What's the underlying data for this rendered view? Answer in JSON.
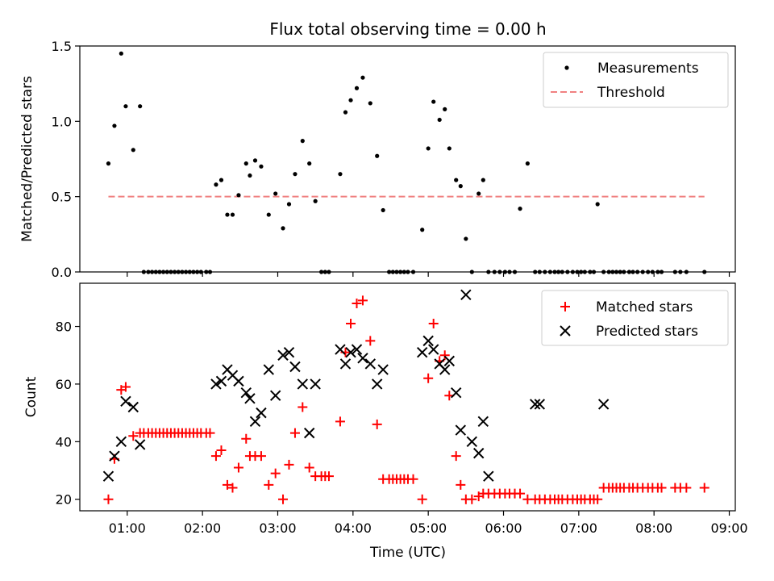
{
  "chart_data": [
    {
      "type": "scatter",
      "title": "Flux total observing time = 0.00 h",
      "xlabel": "",
      "ylabel": "Matched/Predicted stars",
      "xlim": [
        0.37,
        9.08
      ],
      "ylim": [
        0,
        1.5
      ],
      "yticks": [
        0,
        0.5,
        1.0,
        1.5
      ],
      "ytick_labels": [
        "0.0",
        "0.5",
        "1.0",
        "1.5"
      ],
      "xticks": [
        1,
        2,
        3,
        4,
        5,
        6,
        7,
        8,
        9
      ],
      "legend_position": "top-right",
      "threshold": {
        "name": "Threshold",
        "y": 0.5,
        "x_range": [
          0.75,
          8.67
        ],
        "color": "#f08080",
        "style": "dashed"
      },
      "series": [
        {
          "name": "Measurements",
          "color": "#000000",
          "marker": "dot",
          "x": [
            0.75,
            0.83,
            0.92,
            0.98,
            1.08,
            1.17,
            1.22,
            1.28,
            1.33,
            1.38,
            1.43,
            1.48,
            1.53,
            1.58,
            1.63,
            1.68,
            1.73,
            1.78,
            1.83,
            1.88,
            1.93,
            1.98,
            2.05,
            2.1,
            2.18,
            2.25,
            2.33,
            2.4,
            2.48,
            2.58,
            2.63,
            2.7,
            2.78,
            2.88,
            2.97,
            3.07,
            3.15,
            3.23,
            3.33,
            3.42,
            3.5,
            3.58,
            3.63,
            3.68,
            3.83,
            3.9,
            3.97,
            4.05,
            4.13,
            4.23,
            4.32,
            4.4,
            4.48,
            4.53,
            4.58,
            4.63,
            4.68,
            4.73,
            4.8,
            4.92,
            5.0,
            5.07,
            5.15,
            5.22,
            5.28,
            5.37,
            5.43,
            5.5,
            5.58,
            5.67,
            5.73,
            5.8,
            5.88,
            5.95,
            6.02,
            6.08,
            6.15,
            6.22,
            6.32,
            6.42,
            6.48,
            6.55,
            6.62,
            6.68,
            6.73,
            6.78,
            6.85,
            6.92,
            6.98,
            7.03,
            7.08,
            7.15,
            7.2,
            7.25,
            7.33,
            7.4,
            7.45,
            7.5,
            7.55,
            7.6,
            7.67,
            7.72,
            7.78,
            7.85,
            7.92,
            7.98,
            8.05,
            8.1,
            8.28,
            8.35,
            8.43,
            8.67
          ],
          "y": [
            0.72,
            0.97,
            1.45,
            1.1,
            0.81,
            1.1,
            0,
            0,
            0,
            0,
            0,
            0,
            0,
            0,
            0,
            0,
            0,
            0,
            0,
            0,
            0,
            0,
            0,
            0,
            0.58,
            0.61,
            0.38,
            0.38,
            0.51,
            0.72,
            0.64,
            0.74,
            0.7,
            0.38,
            0.52,
            0.29,
            0.45,
            0.65,
            0.87,
            0.72,
            0.47,
            0,
            0,
            0,
            0.65,
            1.06,
            1.14,
            1.22,
            1.29,
            1.12,
            0.77,
            0.41,
            0,
            0,
            0,
            0,
            0,
            0,
            0,
            0.28,
            0.82,
            1.13,
            1.01,
            1.08,
            0.82,
            0.61,
            0.57,
            0.22,
            0,
            0.52,
            0.61,
            0,
            0,
            0,
            0,
            0,
            0,
            0.42,
            0.72,
            0,
            0,
            0,
            0,
            0,
            0,
            0,
            0,
            0,
            0,
            0,
            0,
            0,
            0,
            0.45,
            0,
            0,
            0,
            0,
            0,
            0,
            0,
            0,
            0,
            0,
            0,
            0,
            0,
            0,
            0,
            0,
            0,
            0
          ]
        }
      ]
    },
    {
      "type": "scatter",
      "title": "",
      "xlabel": "Time (UTC)",
      "ylabel": "Count",
      "xlim": [
        0.37,
        9.08
      ],
      "ylim": [
        16,
        95
      ],
      "yticks": [
        20,
        40,
        60,
        80
      ],
      "ytick_labels": [
        "20",
        "40",
        "60",
        "80"
      ],
      "xticks": [
        1,
        2,
        3,
        4,
        5,
        6,
        7,
        8,
        9
      ],
      "xtick_labels": [
        "01:00",
        "02:00",
        "03:00",
        "04:00",
        "05:00",
        "06:00",
        "07:00",
        "08:00",
        "09:00"
      ],
      "legend_position": "top-right",
      "series": [
        {
          "name": "Matched stars",
          "color": "#ff0000",
          "marker": "plus",
          "x": [
            0.75,
            0.83,
            0.92,
            0.98,
            1.08,
            1.17,
            1.22,
            1.28,
            1.33,
            1.38,
            1.43,
            1.48,
            1.53,
            1.58,
            1.63,
            1.68,
            1.73,
            1.78,
            1.83,
            1.88,
            1.93,
            1.98,
            2.05,
            2.1,
            2.18,
            2.25,
            2.33,
            2.4,
            2.48,
            2.58,
            2.63,
            2.7,
            2.78,
            2.88,
            2.97,
            3.07,
            3.15,
            3.23,
            3.33,
            3.42,
            3.5,
            3.58,
            3.63,
            3.68,
            3.83,
            3.9,
            3.97,
            4.05,
            4.13,
            4.23,
            4.32,
            4.4,
            4.48,
            4.53,
            4.58,
            4.63,
            4.68,
            4.73,
            4.8,
            4.92,
            5.0,
            5.07,
            5.15,
            5.22,
            5.28,
            5.37,
            5.43,
            5.5,
            5.58,
            5.67,
            5.73,
            5.8,
            5.88,
            5.95,
            6.02,
            6.08,
            6.15,
            6.22,
            6.32,
            6.42,
            6.48,
            6.55,
            6.62,
            6.68,
            6.73,
            6.78,
            6.85,
            6.92,
            6.98,
            7.03,
            7.08,
            7.15,
            7.2,
            7.25,
            7.33,
            7.4,
            7.45,
            7.5,
            7.55,
            7.6,
            7.67,
            7.72,
            7.78,
            7.85,
            7.92,
            7.98,
            8.05,
            8.1,
            8.28,
            8.35,
            8.43,
            8.67
          ],
          "y": [
            20,
            34,
            58,
            59,
            42,
            43,
            43,
            43,
            43,
            43,
            43,
            43,
            43,
            43,
            43,
            43,
            43,
            43,
            43,
            43,
            43,
            43,
            43,
            43,
            35,
            37,
            25,
            24,
            31,
            41,
            35,
            35,
            35,
            25,
            29,
            20,
            32,
            43,
            52,
            31,
            28,
            28,
            28,
            28,
            47,
            71,
            81,
            88,
            89,
            75,
            46,
            27,
            27,
            27,
            27,
            27,
            27,
            27,
            27,
            20,
            62,
            81,
            68,
            70,
            56,
            35,
            25,
            20,
            20,
            21,
            22,
            22,
            22,
            22,
            22,
            22,
            22,
            22,
            20,
            20,
            20,
            20,
            20,
            20,
            20,
            20,
            20,
            20,
            20,
            20,
            20,
            20,
            20,
            20,
            24,
            24,
            24,
            24,
            24,
            24,
            24,
            24,
            24,
            24,
            24,
            24,
            24,
            24,
            24,
            24,
            24,
            24
          ]
        },
        {
          "name": "Predicted stars",
          "color": "#000000",
          "marker": "x",
          "x": [
            0.75,
            0.83,
            0.92,
            0.98,
            1.08,
            1.17,
            2.18,
            2.25,
            2.33,
            2.4,
            2.48,
            2.58,
            2.63,
            2.7,
            2.78,
            2.88,
            2.97,
            3.07,
            3.15,
            3.23,
            3.33,
            3.42,
            3.5,
            3.83,
            3.9,
            3.97,
            4.05,
            4.13,
            4.23,
            4.32,
            4.4,
            4.92,
            5.0,
            5.07,
            5.15,
            5.22,
            5.28,
            5.37,
            5.43,
            5.5,
            5.58,
            5.67,
            5.73,
            5.8,
            6.42,
            6.48,
            7.33
          ],
          "y": [
            28,
            35,
            40,
            54,
            52,
            39,
            60,
            61,
            65,
            63,
            61,
            57,
            55,
            47,
            50,
            65,
            56,
            70,
            71,
            66,
            60,
            43,
            60,
            72,
            67,
            71,
            72,
            69,
            67,
            60,
            65,
            71,
            75,
            72,
            67,
            65,
            68,
            57,
            44,
            91,
            40,
            36,
            47,
            28,
            53,
            53,
            53
          ]
        }
      ]
    }
  ],
  "legends": {
    "top": [
      "Measurements",
      "Threshold"
    ],
    "bottom": [
      "Matched stars",
      "Predicted stars"
    ]
  }
}
